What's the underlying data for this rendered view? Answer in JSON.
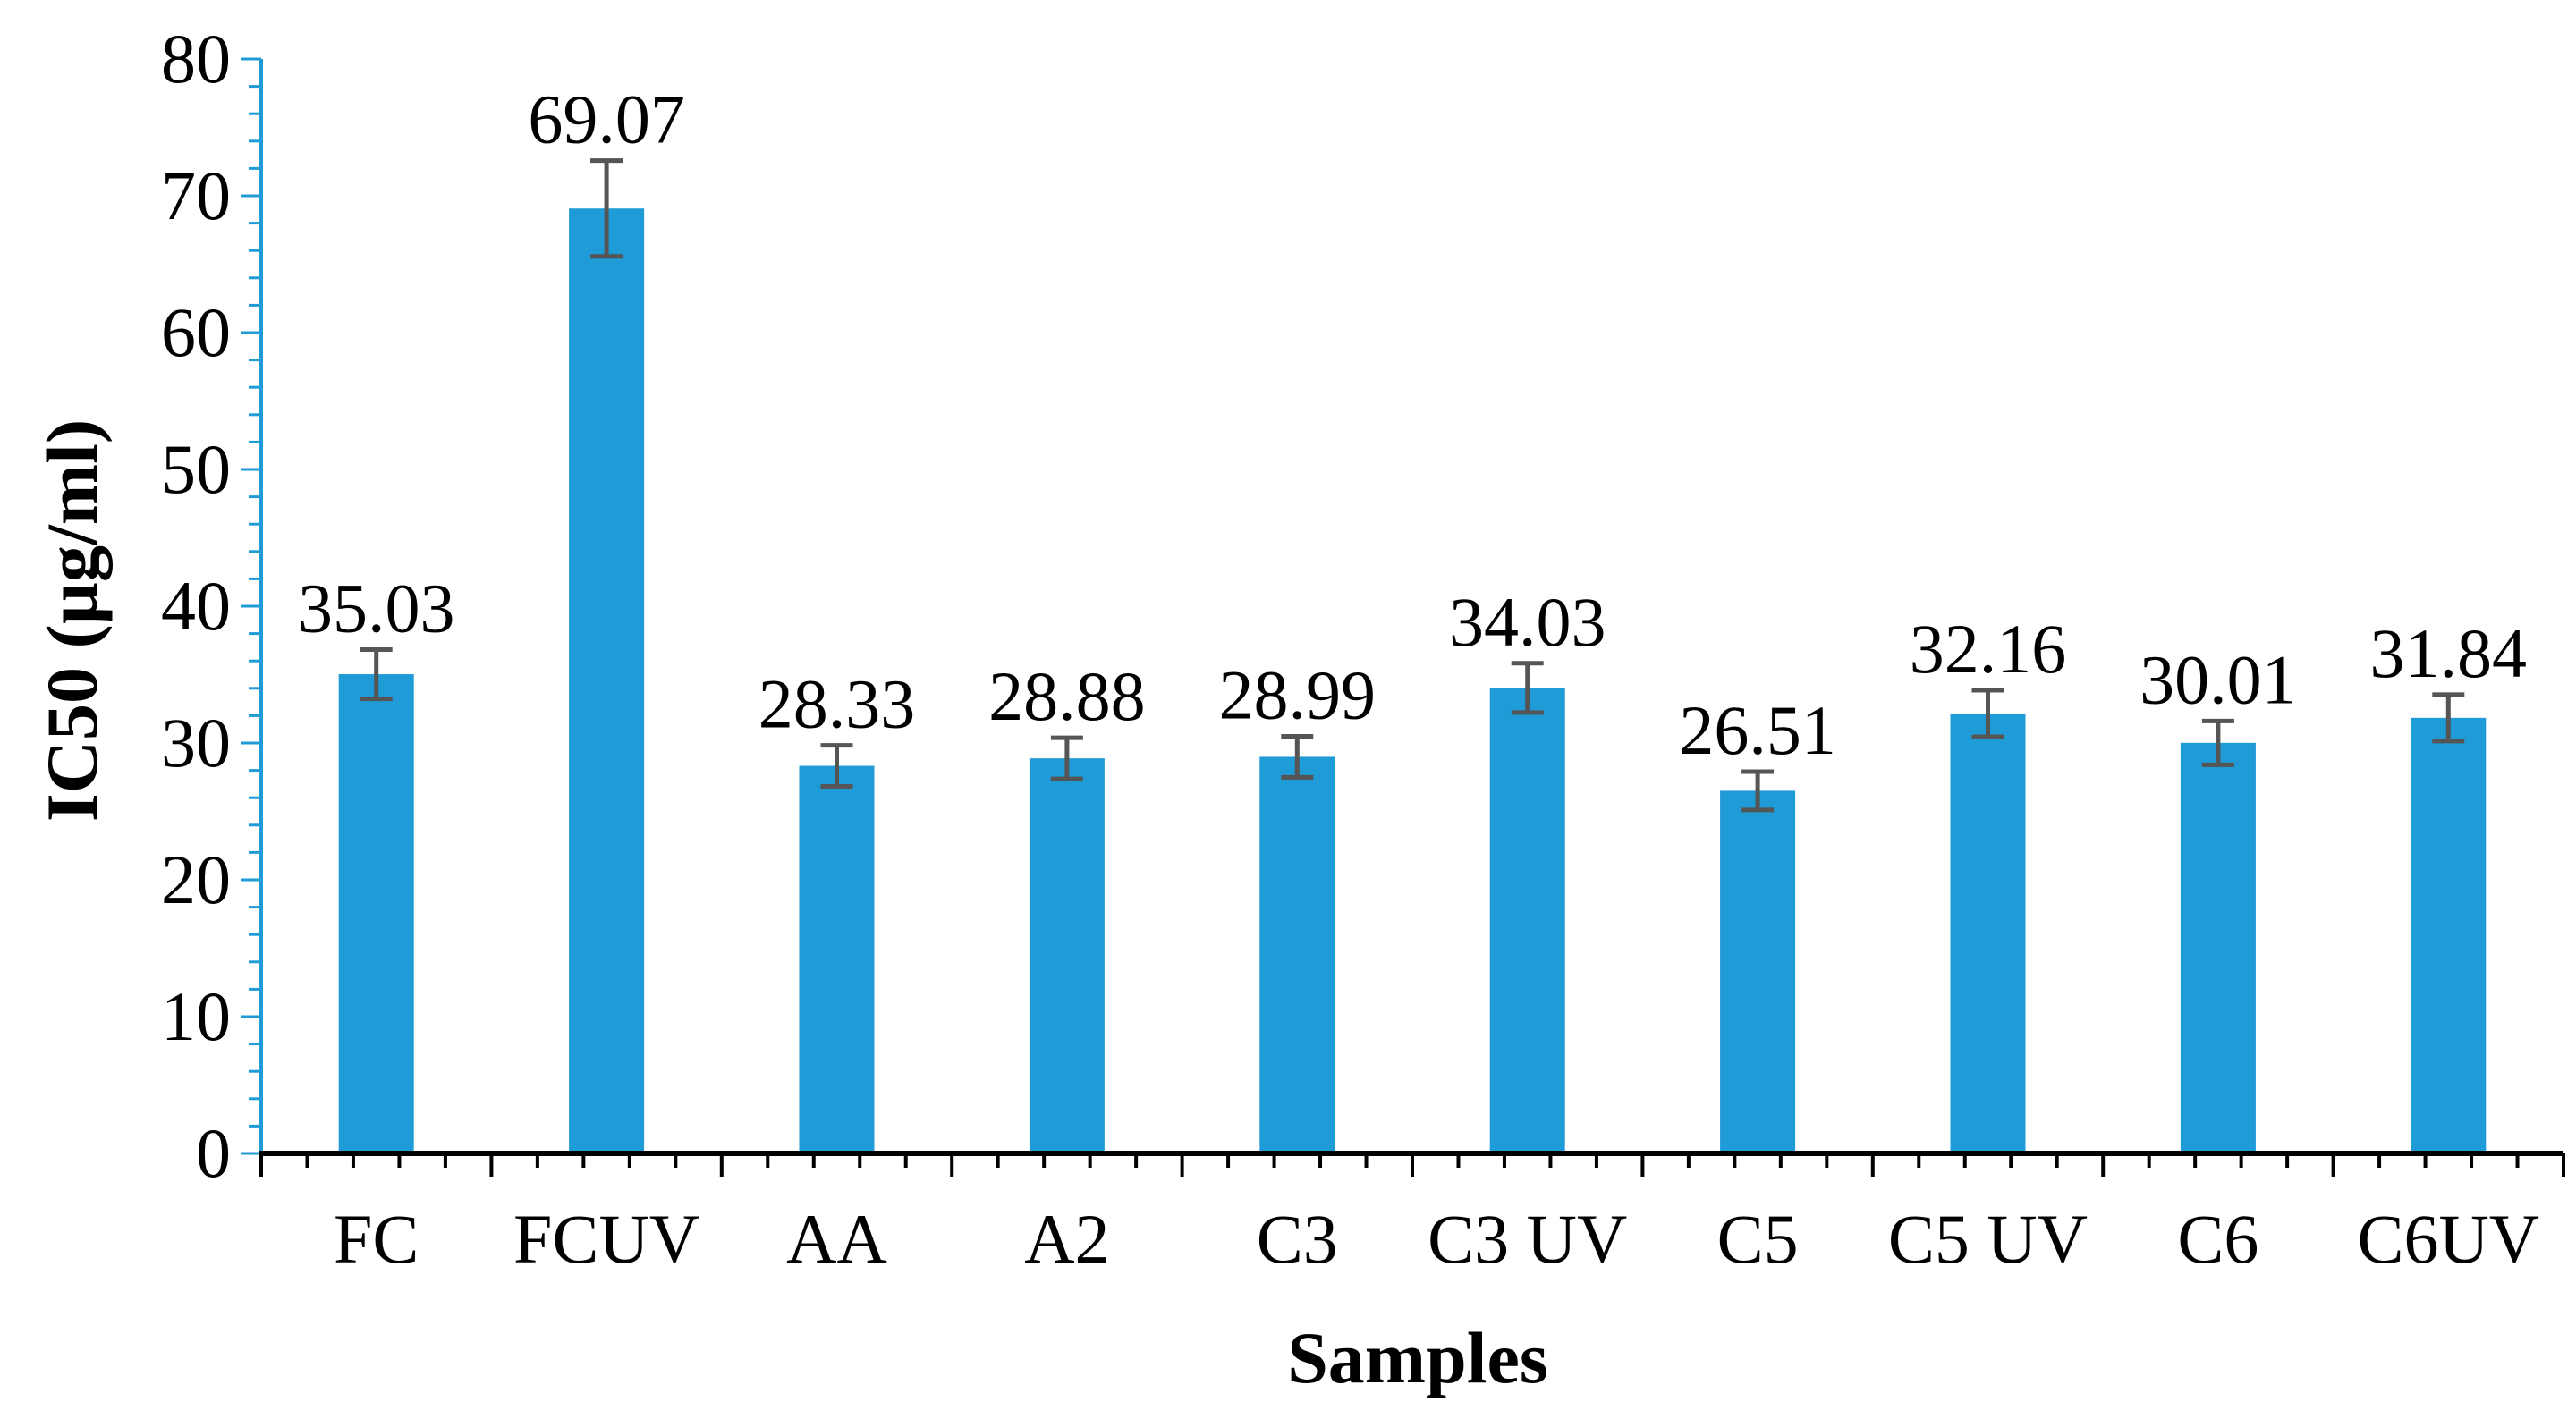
{
  "chart_data": {
    "type": "bar",
    "title": "",
    "xlabel": "Samples",
    "ylabel": "IC50 (µg/ml)",
    "ylim": [
      0,
      80
    ],
    "y_ticks": [
      0,
      10,
      20,
      30,
      40,
      50,
      60,
      70,
      80
    ],
    "y_tick_labels": [
      "0",
      "10",
      "20",
      "30",
      "40",
      "50",
      "60",
      "70",
      "80"
    ],
    "grid": false,
    "legend": "none",
    "bar_color": "#1f9bd7",
    "axis_color": "#000000",
    "y_axis_color": "#1f9bd7",
    "error_bar_color": "#555555",
    "categories": [
      "FC",
      "FCUV",
      "AA",
      "A2",
      "C3",
      "C3 UV",
      "C5",
      "C5 UV",
      "C6",
      "C6UV"
    ],
    "values": [
      35.03,
      69.07,
      28.33,
      28.88,
      28.99,
      34.03,
      26.51,
      32.16,
      30.01,
      31.84
    ],
    "value_labels": [
      "35.03",
      "69.07",
      "28.33",
      "28.88",
      "28.99",
      "34.03",
      "26.51",
      "32.16",
      "30.01",
      "31.84"
    ],
    "errors": [
      1.8,
      3.5,
      1.5,
      1.5,
      1.5,
      1.8,
      1.4,
      1.7,
      1.6,
      1.7
    ]
  }
}
